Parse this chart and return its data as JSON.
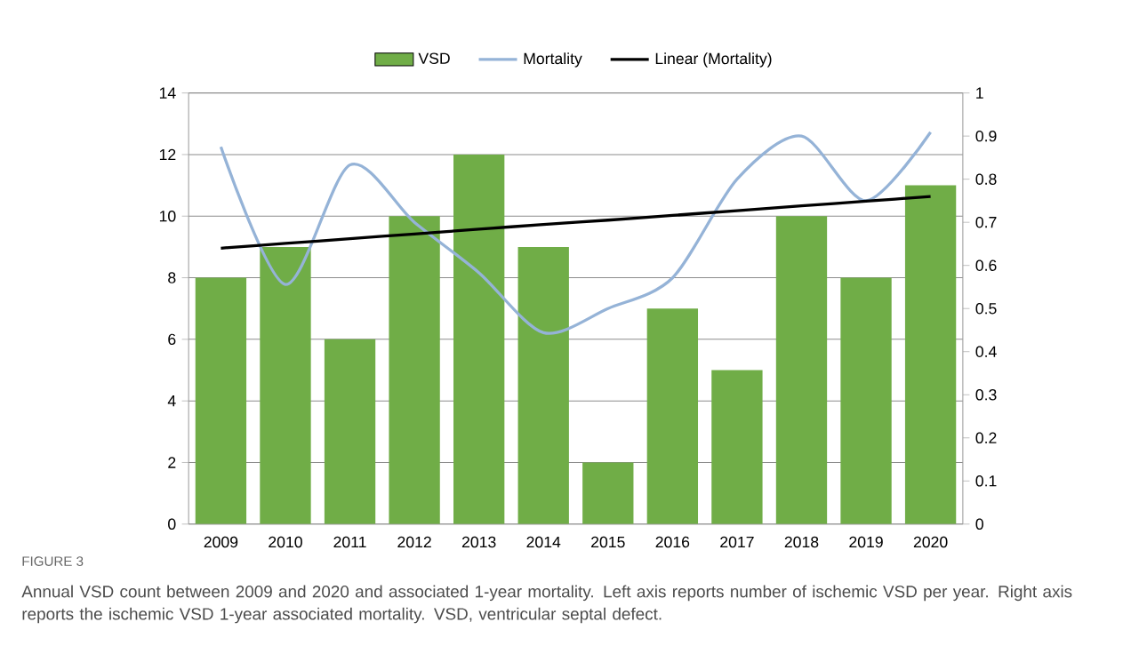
{
  "chart_data": {
    "type": "bar",
    "categories": [
      "2009",
      "2010",
      "2011",
      "2012",
      "2013",
      "2014",
      "2015",
      "2016",
      "2017",
      "2018",
      "2019",
      "2020"
    ],
    "series": [
      {
        "name": "VSD",
        "color": "#70ad47",
        "values": [
          8,
          9,
          6,
          10,
          12,
          9,
          2,
          7,
          5,
          10,
          8,
          11
        ]
      },
      {
        "name": "Mortality",
        "type": "line",
        "axis": "y2",
        "color": "#95b3d7",
        "values": [
          0.875,
          0.556,
          0.833,
          0.7,
          0.583,
          0.444,
          0.5,
          0.571,
          0.8,
          0.9,
          0.75,
          0.909
        ]
      },
      {
        "name": "Linear (Mortality)",
        "type": "line",
        "axis": "y2",
        "color": "#000000",
        "values": [
          0.64,
          0.651,
          0.662,
          0.673,
          0.684,
          0.695,
          0.705,
          0.716,
          0.727,
          0.738,
          0.749,
          0.76
        ]
      }
    ],
    "ylim": [
      0,
      14
    ],
    "yticks": [
      0,
      2,
      4,
      6,
      8,
      10,
      12,
      14
    ],
    "y2lim": [
      0,
      1
    ],
    "y2ticks": [
      0,
      0.1,
      0.2,
      0.3,
      0.4,
      0.5,
      0.6,
      0.7,
      0.8,
      0.9,
      1
    ],
    "grid": "y",
    "legend": "top",
    "annotations": [
      "FIGURE 3",
      "Annual VSD count between 2009 and 2020 and associated 1-year mortality. Left axis reports number of ischemic VSD per year. Right axis reports the ischemic VSD 1-year associated mortality. VSD, ventricular septal defect."
    ]
  }
}
